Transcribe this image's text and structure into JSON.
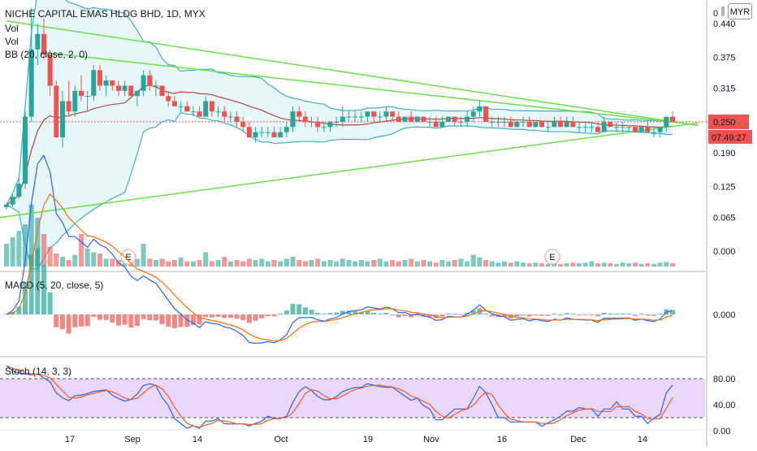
{
  "header": {
    "title": "NICHE CAPITAL EMAS HLDG BHD, 1D, MYX",
    "labels": [
      "Vol",
      "Vol",
      "BB (20, close, 2, 0)"
    ],
    "currency": "MYR"
  },
  "price_panel": {
    "last_price": "0.250",
    "countdown": "07:49:27",
    "top_tick": "0"
  },
  "panes": {
    "macd_label": "MACD (5, 20, close, 5)",
    "stoch_label": "Stoch (14, 3, 3)"
  },
  "earnings_markers": [
    "E",
    "E"
  ],
  "colors": {
    "up": "#26a69a",
    "down": "#ef5350",
    "bb": "#3fb1c5",
    "basis": "#b5473a",
    "trendline": "#66e24a",
    "stoch_k": "#2962ff",
    "stoch_d": "#ff5722",
    "stoch_band": "#e2c6f7"
  },
  "chart_data": {
    "type": "candlestick",
    "title": "NICHE CAPITAL EMAS HLDG BHD, 1D, MYX",
    "x_ticks": [
      "17",
      "Sep",
      "14",
      "Oct",
      "19",
      "Nov",
      "16",
      "Dec",
      "14"
    ],
    "y_ticks": [
      "0.440",
      "0.375",
      "0.315",
      "0.250",
      "0.190",
      "0.125",
      "0.065",
      "0.000"
    ],
    "ylim": [
      -0.03,
      0.47
    ],
    "macd_ticks": [
      "0.000"
    ],
    "stoch_ticks": [
      "80.00",
      "40.00",
      "0.00"
    ],
    "stoch_bands": [
      20,
      80
    ],
    "candles": [
      [
        0.085,
        0.09,
        0.08,
        0.09
      ],
      [
        0.09,
        0.11,
        0.085,
        0.105
      ],
      [
        0.105,
        0.14,
        0.1,
        0.13
      ],
      [
        0.13,
        0.27,
        0.12,
        0.26
      ],
      [
        0.26,
        0.47,
        0.25,
        0.39
      ],
      [
        0.39,
        0.44,
        0.36,
        0.42
      ],
      [
        0.42,
        0.45,
        0.37,
        0.38
      ],
      [
        0.38,
        0.39,
        0.3,
        0.32
      ],
      [
        0.32,
        0.33,
        0.22,
        0.22
      ],
      [
        0.22,
        0.31,
        0.2,
        0.29
      ],
      [
        0.29,
        0.33,
        0.26,
        0.27
      ],
      [
        0.27,
        0.32,
        0.26,
        0.31
      ],
      [
        0.31,
        0.34,
        0.29,
        0.3
      ],
      [
        0.3,
        0.31,
        0.27,
        0.3
      ],
      [
        0.3,
        0.36,
        0.29,
        0.35
      ],
      [
        0.35,
        0.36,
        0.31,
        0.32
      ],
      [
        0.32,
        0.34,
        0.3,
        0.33
      ],
      [
        0.33,
        0.33,
        0.31,
        0.32
      ],
      [
        0.32,
        0.33,
        0.3,
        0.31
      ],
      [
        0.31,
        0.33,
        0.3,
        0.32
      ],
      [
        0.32,
        0.32,
        0.3,
        0.3
      ],
      [
        0.3,
        0.31,
        0.28,
        0.31
      ],
      [
        0.31,
        0.35,
        0.3,
        0.34
      ],
      [
        0.34,
        0.35,
        0.31,
        0.32
      ],
      [
        0.32,
        0.33,
        0.3,
        0.32
      ],
      [
        0.32,
        0.32,
        0.3,
        0.3
      ],
      [
        0.3,
        0.31,
        0.28,
        0.29
      ],
      [
        0.29,
        0.3,
        0.28,
        0.28
      ],
      [
        0.28,
        0.29,
        0.27,
        0.28
      ],
      [
        0.28,
        0.29,
        0.27,
        0.27
      ],
      [
        0.27,
        0.28,
        0.26,
        0.27
      ],
      [
        0.27,
        0.28,
        0.26,
        0.26
      ],
      [
        0.26,
        0.3,
        0.26,
        0.29
      ],
      [
        0.29,
        0.29,
        0.26,
        0.27
      ],
      [
        0.27,
        0.28,
        0.26,
        0.27
      ],
      [
        0.27,
        0.28,
        0.25,
        0.26
      ],
      [
        0.26,
        0.27,
        0.25,
        0.26
      ],
      [
        0.26,
        0.27,
        0.24,
        0.25
      ],
      [
        0.25,
        0.26,
        0.23,
        0.24
      ],
      [
        0.24,
        0.25,
        0.22,
        0.22
      ],
      [
        0.22,
        0.24,
        0.21,
        0.23
      ],
      [
        0.23,
        0.24,
        0.22,
        0.23
      ],
      [
        0.23,
        0.24,
        0.22,
        0.23
      ],
      [
        0.23,
        0.24,
        0.22,
        0.22
      ],
      [
        0.22,
        0.24,
        0.22,
        0.23
      ],
      [
        0.23,
        0.25,
        0.22,
        0.24
      ],
      [
        0.24,
        0.28,
        0.23,
        0.27
      ],
      [
        0.27,
        0.28,
        0.25,
        0.26
      ],
      [
        0.26,
        0.27,
        0.24,
        0.25
      ],
      [
        0.25,
        0.26,
        0.24,
        0.25
      ],
      [
        0.25,
        0.26,
        0.23,
        0.24
      ],
      [
        0.24,
        0.25,
        0.23,
        0.24
      ],
      [
        0.24,
        0.25,
        0.23,
        0.25
      ],
      [
        0.25,
        0.26,
        0.24,
        0.25
      ],
      [
        0.25,
        0.28,
        0.24,
        0.26
      ],
      [
        0.26,
        0.27,
        0.25,
        0.26
      ],
      [
        0.26,
        0.27,
        0.25,
        0.26
      ],
      [
        0.26,
        0.27,
        0.25,
        0.26
      ],
      [
        0.26,
        0.27,
        0.25,
        0.27
      ],
      [
        0.27,
        0.27,
        0.25,
        0.26
      ],
      [
        0.26,
        0.27,
        0.25,
        0.26
      ],
      [
        0.26,
        0.28,
        0.25,
        0.27
      ],
      [
        0.27,
        0.27,
        0.25,
        0.26
      ],
      [
        0.26,
        0.27,
        0.25,
        0.25
      ],
      [
        0.25,
        0.26,
        0.25,
        0.26
      ],
      [
        0.26,
        0.27,
        0.25,
        0.25
      ],
      [
        0.25,
        0.26,
        0.25,
        0.26
      ],
      [
        0.26,
        0.26,
        0.25,
        0.25
      ],
      [
        0.25,
        0.26,
        0.24,
        0.25
      ],
      [
        0.25,
        0.26,
        0.24,
        0.24
      ],
      [
        0.24,
        0.26,
        0.24,
        0.25
      ],
      [
        0.25,
        0.26,
        0.25,
        0.26
      ],
      [
        0.26,
        0.26,
        0.24,
        0.25
      ],
      [
        0.25,
        0.26,
        0.24,
        0.25
      ],
      [
        0.25,
        0.27,
        0.24,
        0.26
      ],
      [
        0.26,
        0.28,
        0.25,
        0.27
      ],
      [
        0.27,
        0.29,
        0.26,
        0.28
      ],
      [
        0.28,
        0.28,
        0.25,
        0.25
      ],
      [
        0.25,
        0.26,
        0.24,
        0.25
      ],
      [
        0.25,
        0.26,
        0.24,
        0.25
      ],
      [
        0.25,
        0.26,
        0.24,
        0.25
      ],
      [
        0.25,
        0.26,
        0.24,
        0.24
      ],
      [
        0.24,
        0.25,
        0.24,
        0.25
      ],
      [
        0.25,
        0.26,
        0.24,
        0.25
      ],
      [
        0.25,
        0.26,
        0.24,
        0.24
      ],
      [
        0.24,
        0.25,
        0.24,
        0.25
      ],
      [
        0.25,
        0.25,
        0.24,
        0.24
      ],
      [
        0.24,
        0.25,
        0.23,
        0.24
      ],
      [
        0.24,
        0.26,
        0.24,
        0.25
      ],
      [
        0.25,
        0.26,
        0.24,
        0.24
      ],
      [
        0.24,
        0.26,
        0.24,
        0.25
      ],
      [
        0.25,
        0.26,
        0.24,
        0.24
      ],
      [
        0.24,
        0.25,
        0.23,
        0.24
      ],
      [
        0.24,
        0.25,
        0.23,
        0.24
      ],
      [
        0.24,
        0.25,
        0.23,
        0.24
      ],
      [
        0.24,
        0.25,
        0.23,
        0.23
      ],
      [
        0.23,
        0.26,
        0.23,
        0.25
      ],
      [
        0.25,
        0.25,
        0.24,
        0.24
      ],
      [
        0.24,
        0.25,
        0.23,
        0.24
      ],
      [
        0.24,
        0.25,
        0.23,
        0.24
      ],
      [
        0.24,
        0.24,
        0.23,
        0.24
      ],
      [
        0.24,
        0.24,
        0.23,
        0.23
      ],
      [
        0.23,
        0.24,
        0.23,
        0.24
      ],
      [
        0.24,
        0.25,
        0.23,
        0.23
      ],
      [
        0.23,
        0.24,
        0.22,
        0.23
      ],
      [
        0.23,
        0.24,
        0.22,
        0.24
      ],
      [
        0.24,
        0.26,
        0.23,
        0.26
      ],
      [
        0.26,
        0.27,
        0.25,
        0.25
      ]
    ],
    "volumes": [
      0.35,
      0.45,
      0.55,
      0.65,
      0.95,
      0.75,
      0.5,
      0.3,
      0.2,
      0.15,
      0.1,
      0.18,
      0.5,
      0.28,
      0.22,
      0.2,
      0.12,
      0.12,
      0.1,
      0.12,
      0.1,
      0.12,
      0.35,
      0.12,
      0.1,
      0.12,
      0.08,
      0.1,
      0.14,
      0.08,
      0.08,
      0.1,
      0.22,
      0.08,
      0.1,
      0.15,
      0.08,
      0.1,
      0.08,
      0.12,
      0.1,
      0.12,
      0.08,
      0.1,
      0.08,
      0.12,
      0.15,
      0.1,
      0.08,
      0.1,
      0.12,
      0.08,
      0.1,
      0.08,
      0.12,
      0.1,
      0.08,
      0.1,
      0.08,
      0.1,
      0.12,
      0.08,
      0.1,
      0.08,
      0.1,
      0.12,
      0.08,
      0.1,
      0.08,
      0.06,
      0.1,
      0.08,
      0.1,
      0.12,
      0.08,
      0.18,
      0.14,
      0.1,
      0.08,
      0.06,
      0.08,
      0.06,
      0.08,
      0.06,
      0.05,
      0.06,
      0.05,
      0.04,
      0.05,
      0.04,
      0.05,
      0.06,
      0.05,
      0.06,
      0.08,
      0.05,
      0.06,
      0.05,
      0.04,
      0.06,
      0.05,
      0.06,
      0.04,
      0.05,
      0.04,
      0.06,
      0.07,
      0.05
    ]
  }
}
